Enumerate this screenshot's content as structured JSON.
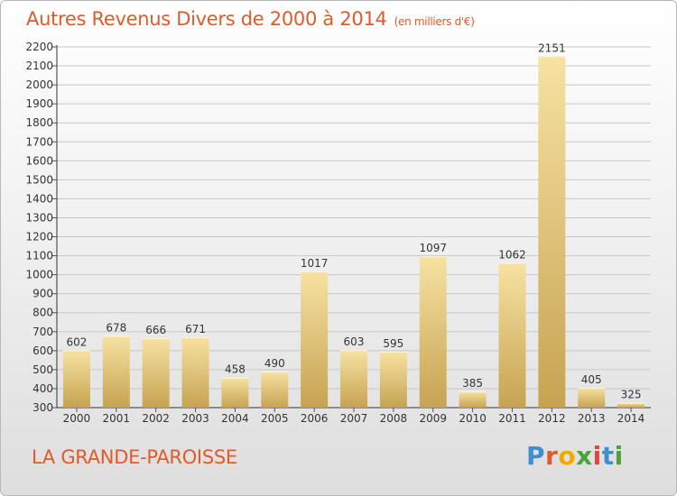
{
  "title": "Autres Revenus Divers de 2000 à 2014",
  "unit": "(en milliers d'€)",
  "location": "LA GRANDE-PAROISSE",
  "logo": {
    "text": "Proxiti",
    "letter_colors": [
      "#3f8fd0",
      "#e05a2c",
      "#f2a900",
      "#4aa33b",
      "#e5443e",
      "#3f8fd0",
      "#4aa33b"
    ]
  },
  "colors": {
    "title": "#e05a2c",
    "bar_light": "#f7e2a2",
    "bar_dark": "#c6a352",
    "grid": "#c8c8c8"
  },
  "chart_data": {
    "type": "bar",
    "title": "Autres Revenus Divers de 2000 à 2014",
    "subtitle": "(en milliers d'€)",
    "categories": [
      "2000",
      "2001",
      "2002",
      "2003",
      "2004",
      "2005",
      "2006",
      "2007",
      "2008",
      "2009",
      "2010",
      "2011",
      "2012",
      "2013",
      "2014"
    ],
    "values": [
      602,
      678,
      666,
      671,
      458,
      490,
      1017,
      603,
      595,
      1097,
      385,
      1062,
      2151,
      405,
      325
    ],
    "ylim": [
      300,
      2200
    ],
    "yticks": [
      300,
      400,
      500,
      600,
      700,
      800,
      900,
      1000,
      1100,
      1200,
      1300,
      1400,
      1500,
      1600,
      1700,
      1800,
      1900,
      2000,
      2100,
      2200
    ],
    "grid": true,
    "xlabel": "",
    "ylabel": ""
  }
}
